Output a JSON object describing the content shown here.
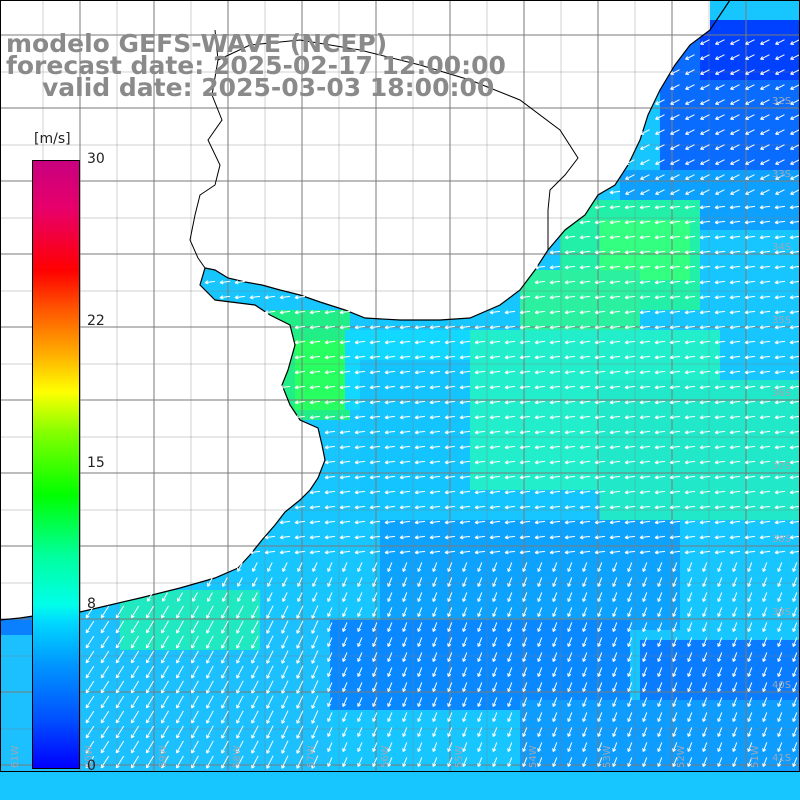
{
  "title": {
    "line1": "modelo GEFS-WAVE (NCEP)",
    "line2": "forecast date: 2025-02-17 12:00:00",
    "line3": "valid date: 2025-03-03 18:00:00"
  },
  "colorbar": {
    "unit": "[m/s]",
    "ticks": [
      {
        "value": 30,
        "label": "30"
      },
      {
        "value": 22,
        "label": "22"
      },
      {
        "value": 15,
        "label": "15"
      },
      {
        "value": 8,
        "label": "8"
      },
      {
        "value": 0,
        "label": "0"
      }
    ],
    "min": 0,
    "max": 30
  },
  "map": {
    "variable": "wind speed",
    "land_color": "#ffffff",
    "coastline_color": "#000000",
    "grid_color": "#7a7a7a",
    "arrow_color": "#ffffff",
    "lat_labels": [
      "32S",
      "33S",
      "34S",
      "35S",
      "36S",
      "37S",
      "38S",
      "39S",
      "40S",
      "41S"
    ],
    "lon_labels": [
      "61W",
      "60W",
      "59W",
      "58W",
      "57W",
      "56W",
      "55W",
      "54W",
      "53W",
      "52W",
      "51W"
    ],
    "dominant_wind_direction": "from east / northeast toward west-southwest"
  }
}
